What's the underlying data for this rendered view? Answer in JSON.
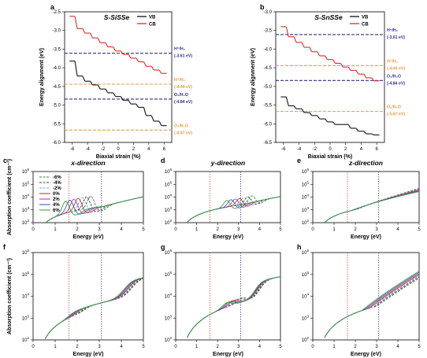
{
  "colors": {
    "vb": "#111111",
    "cb": "#d92b2b",
    "blue_dash": "#2b2f8f",
    "orange_dash": "#e89a3c",
    "red_dot": "#e0404a",
    "blue_dot": "#3a3a8a"
  },
  "strain_colors": [
    "#3a7d3a",
    "#444444",
    "#6e9fd8",
    "#d33535",
    "#a04aa8",
    "#3c5fb0",
    "#3aa33a"
  ],
  "strain_styles": [
    "dash",
    "dash",
    "dash",
    "solid",
    "solid",
    "solid",
    "solid"
  ],
  "chart_data": [
    {
      "id": "a",
      "type": "line",
      "title": "S-SiSSe",
      "xlabel": "Biaxial strain (%)",
      "ylabel": "Energy alignment (eV)",
      "xlim": [
        -7,
        7
      ],
      "ylim": [
        -6.0,
        -2.5
      ],
      "xticks": [
        -6,
        -4,
        -2,
        0,
        2,
        4,
        6
      ],
      "xtick_labels": [
        "-6",
        "-4",
        "-2",
        "0",
        "2",
        "4",
        "6"
      ],
      "yticks": [
        -6.0,
        -5.5,
        -5.0,
        -4.5,
        -4.0,
        -3.5,
        -3.0,
        -2.5
      ],
      "ytick_labels": [
        "-6.0",
        "-5.5",
        "-5.0",
        "-4.5",
        "-4.0",
        "-3.5",
        "-3.0",
        "-2.5"
      ],
      "strains": [
        -6,
        -5,
        -4,
        -3,
        -2,
        -1,
        0,
        1,
        2,
        3,
        4,
        5,
        6
      ],
      "series": [
        {
          "name": "VB",
          "values": [
            -3.82,
            -4.22,
            -4.36,
            -4.46,
            -4.57,
            -4.67,
            -4.77,
            -4.87,
            -4.97,
            -5.06,
            -5.28,
            -5.43,
            -5.55
          ]
        },
        {
          "name": "CB",
          "values": [
            -2.62,
            -2.95,
            -3.07,
            -3.2,
            -3.33,
            -3.44,
            -3.55,
            -3.64,
            -3.74,
            -3.84,
            -3.96,
            -4.06,
            -4.15
          ]
        }
      ],
      "ref_lines": [
        {
          "value": -3.61,
          "label1": "H⁺/H₂",
          "label2": "(-3.61 eV)",
          "color": "#2b2f8f"
        },
        {
          "value": -4.44,
          "label1": "H⁺/H₂",
          "label2": "(-4.44 eV)",
          "color": "#e89a3c"
        },
        {
          "value": -4.84,
          "label1": "O₂/H₂O",
          "label2": "(-4.84 eV)",
          "color": "#2b2f8f"
        },
        {
          "value": -5.67,
          "label1": "O₂/H₂O",
          "label2": "(-5.67 eV)",
          "color": "#e89a3c"
        }
      ]
    },
    {
      "id": "b",
      "type": "line",
      "title": "S-SnSSe",
      "xlabel": "Biaxial strain (%)",
      "ylabel": "Energy alignment (eV)",
      "xlim": [
        -7,
        7
      ],
      "ylim": [
        -6.5,
        -3.0
      ],
      "xticks": [
        -6,
        -4,
        -2,
        0,
        2,
        4,
        6
      ],
      "xtick_labels": [
        "-6",
        "-4",
        "-2",
        "0",
        "2",
        "4",
        "6"
      ],
      "yticks": [
        -6.5,
        -6.0,
        -5.5,
        -5.0,
        -4.5,
        -4.0,
        -3.5,
        -3.0
      ],
      "ytick_labels": [
        "-6.5",
        "-6.0",
        "-5.5",
        "-5.0",
        "-4.5",
        "-4.0",
        "-3.5",
        "-3.0"
      ],
      "strains": [
        -6,
        -5,
        -4,
        -3,
        -2,
        -1,
        0,
        1,
        2,
        3,
        4,
        5,
        6
      ],
      "series": [
        {
          "name": "VB",
          "values": [
            -5.28,
            -5.52,
            -5.6,
            -5.7,
            -5.78,
            -5.87,
            -5.95,
            -6.02,
            -6.02,
            -6.12,
            -6.2,
            -6.27,
            -6.3
          ]
        },
        {
          "name": "CB",
          "values": [
            -3.4,
            -3.67,
            -3.82,
            -3.95,
            -4.07,
            -4.18,
            -4.28,
            -4.38,
            -4.48,
            -4.57,
            -4.67,
            -4.77,
            -4.85
          ]
        }
      ],
      "ref_lines": [
        {
          "value": -3.61,
          "label1": "H⁺/H₂",
          "label2": "(-3.61 eV)",
          "color": "#2b2f8f"
        },
        {
          "value": -4.44,
          "label1": "H⁺/H₂",
          "label2": "(-4.44 eV)",
          "color": "#e89a3c"
        },
        {
          "value": -4.84,
          "label1": "O₂/H₂O",
          "label2": "(-4.84 eV)",
          "color": "#2b2f8f"
        },
        {
          "value": -5.67,
          "label1": "O₂/H₂O",
          "label2": "(-5.67 eV)",
          "color": "#e89a3c"
        }
      ]
    },
    {
      "id": "c",
      "type": "line",
      "title": "x-direction",
      "xlabel": "Energy (eV)",
      "ylabel": "Absorption coefficient (cm⁻¹)",
      "xlim": [
        0,
        5
      ],
      "ylog": [
        2,
        6
      ],
      "peak_type": "xy",
      "peak_base": 2.05,
      "peak_shift": 0.19,
      "peak_height": 4.15,
      "vlines": [
        1.63,
        3.1
      ],
      "legend": [
        "-6%",
        "-4%",
        "-2%",
        "0%",
        "2%",
        "4%",
        "6%"
      ]
    },
    {
      "id": "d",
      "type": "line",
      "title": "y-direction",
      "xlabel": "Energy (eV)",
      "xlim": [
        0,
        5
      ],
      "ylog": [
        2,
        6
      ],
      "peak_type": "y",
      "peak_base": 3.05,
      "peak_shift": 0.2,
      "peak_height": 5.15,
      "vlines": [
        1.63,
        3.1
      ]
    },
    {
      "id": "e",
      "type": "line",
      "title": "z-direction",
      "xlabel": "Energy (eV)",
      "xlim": [
        0,
        5
      ],
      "ylog": [
        2,
        6
      ],
      "peak_type": "z",
      "vlines": [
        1.63,
        3.1
      ]
    },
    {
      "id": "f",
      "type": "line",
      "xlabel": "Energy (eV)",
      "ylabel": "Absorption coefficient (cm⁻¹)",
      "xlim": [
        0,
        5
      ],
      "ylog": [
        2,
        6
      ],
      "peak_type": "f",
      "vlines": [
        1.63,
        3.1
      ]
    },
    {
      "id": "g",
      "type": "line",
      "xlabel": "Energy (eV)",
      "xlim": [
        0,
        5
      ],
      "ylog": [
        2,
        6
      ],
      "peak_type": "g",
      "vlines": [
        1.63,
        3.1
      ]
    },
    {
      "id": "h",
      "type": "line",
      "xlabel": "Energy (eV)",
      "xlim": [
        0,
        5
      ],
      "ylog": [
        2,
        6
      ],
      "peak_type": "h",
      "vlines": [
        1.63,
        3.1
      ]
    }
  ]
}
